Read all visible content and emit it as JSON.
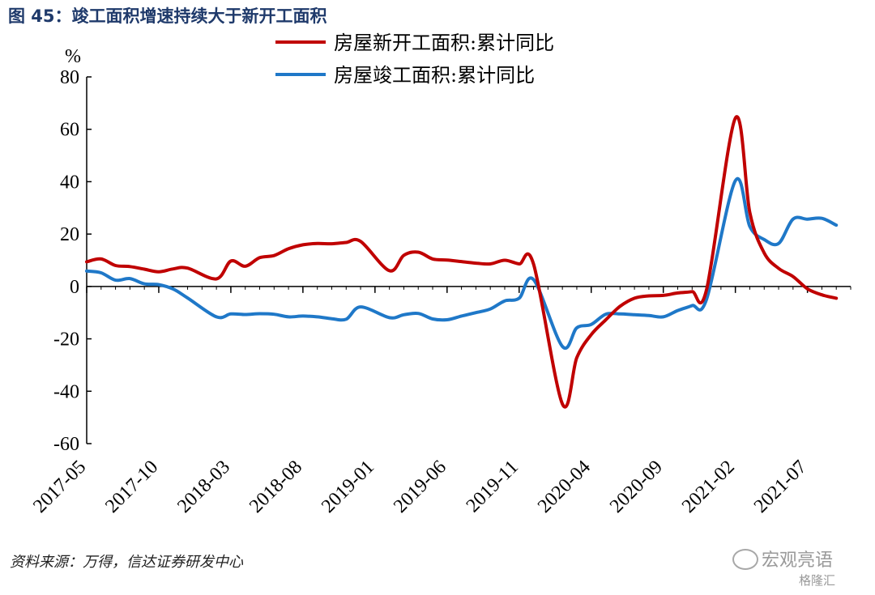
{
  "figure": {
    "title": "图 45：竣工面积增速持续大于新开工面积",
    "source": "资料来源：万得，信达证券研发中心",
    "watermark": "宏观亮语",
    "watermark_sub": "格隆汇"
  },
  "chart_data": {
    "type": "line",
    "yunit": "%",
    "ylim": [
      -60,
      80
    ],
    "yticks": [
      80,
      60,
      40,
      20,
      0,
      -20,
      -40,
      -60
    ],
    "xticks": [
      "2017-05",
      "2017-10",
      "2018-03",
      "2018-08",
      "2019-01",
      "2019-06",
      "2019-11",
      "2020-04",
      "2020-09",
      "2021-02",
      "2021-07"
    ],
    "x_range": [
      "2017-05",
      "2021-10"
    ],
    "legend_position": "top",
    "series": [
      {
        "name": "房屋新开工面积:累计同比",
        "color": "#c00000",
        "points": [
          [
            "2017-05",
            9.4
          ],
          [
            "2017-06",
            10.5
          ],
          [
            "2017-07",
            8.0
          ],
          [
            "2017-08",
            7.6
          ],
          [
            "2017-09",
            6.6
          ],
          [
            "2017-10",
            5.6
          ],
          [
            "2017-11",
            6.7
          ],
          [
            "2017-12",
            7.0
          ],
          [
            "2018-02",
            2.9
          ],
          [
            "2018-03",
            9.7
          ],
          [
            "2018-04",
            7.7
          ],
          [
            "2018-05",
            11.0
          ],
          [
            "2018-06",
            11.8
          ],
          [
            "2018-07",
            14.4
          ],
          [
            "2018-08",
            15.9
          ],
          [
            "2018-09",
            16.4
          ],
          [
            "2018-10",
            16.3
          ],
          [
            "2018-11",
            16.8
          ],
          [
            "2018-12",
            17.2
          ],
          [
            "2019-02",
            6.0
          ],
          [
            "2019-03",
            11.9
          ],
          [
            "2019-04",
            13.1
          ],
          [
            "2019-05",
            10.5
          ],
          [
            "2019-06",
            10.1
          ],
          [
            "2019-07",
            9.5
          ],
          [
            "2019-08",
            8.9
          ],
          [
            "2019-09",
            8.6
          ],
          [
            "2019-10",
            10.0
          ],
          [
            "2019-11",
            8.6
          ],
          [
            "2019-12",
            8.5
          ],
          [
            "2020-02",
            -44.9
          ],
          [
            "2020-03",
            -27.2
          ],
          [
            "2020-04",
            -18.4
          ],
          [
            "2020-05",
            -12.8
          ],
          [
            "2020-06",
            -7.6
          ],
          [
            "2020-07",
            -4.5
          ],
          [
            "2020-08",
            -3.6
          ],
          [
            "2020-09",
            -3.4
          ],
          [
            "2020-10",
            -2.5
          ],
          [
            "2020-11",
            -2.0
          ],
          [
            "2020-12",
            -1.2
          ],
          [
            "2021-02",
            64.3
          ],
          [
            "2021-03",
            28.2
          ],
          [
            "2021-04",
            12.8
          ],
          [
            "2021-05",
            6.9
          ],
          [
            "2021-06",
            3.8
          ],
          [
            "2021-07",
            -0.9
          ],
          [
            "2021-08",
            -3.2
          ],
          [
            "2021-09",
            -4.5
          ]
        ]
      },
      {
        "name": "房屋竣工面积:累计同比",
        "color": "#1f78c8",
        "points": [
          [
            "2017-05",
            5.9
          ],
          [
            "2017-06",
            5.2
          ],
          [
            "2017-07",
            2.4
          ],
          [
            "2017-08",
            3.0
          ],
          [
            "2017-09",
            1.0
          ],
          [
            "2017-10",
            0.7
          ],
          [
            "2017-11",
            -1.0
          ],
          [
            "2017-12",
            -4.4
          ],
          [
            "2018-02",
            -11.6
          ],
          [
            "2018-03",
            -10.5
          ],
          [
            "2018-04",
            -10.7
          ],
          [
            "2018-05",
            -10.4
          ],
          [
            "2018-06",
            -10.6
          ],
          [
            "2018-07",
            -11.6
          ],
          [
            "2018-08",
            -11.3
          ],
          [
            "2018-09",
            -11.6
          ],
          [
            "2018-10",
            -12.3
          ],
          [
            "2018-11",
            -12.5
          ],
          [
            "2018-12",
            -7.8
          ],
          [
            "2019-02",
            -11.9
          ],
          [
            "2019-03",
            -10.8
          ],
          [
            "2019-04",
            -10.3
          ],
          [
            "2019-05",
            -12.4
          ],
          [
            "2019-06",
            -12.7
          ],
          [
            "2019-07",
            -11.3
          ],
          [
            "2019-08",
            -10.0
          ],
          [
            "2019-09",
            -8.6
          ],
          [
            "2019-10",
            -5.5
          ],
          [
            "2019-11",
            -4.5
          ],
          [
            "2019-12",
            2.6
          ],
          [
            "2020-02",
            -22.9
          ],
          [
            "2020-03",
            -15.8
          ],
          [
            "2020-04",
            -14.5
          ],
          [
            "2020-05",
            -10.6
          ],
          [
            "2020-06",
            -10.5
          ],
          [
            "2020-07",
            -10.8
          ],
          [
            "2020-08",
            -11.1
          ],
          [
            "2020-09",
            -11.6
          ],
          [
            "2020-10",
            -9.2
          ],
          [
            "2020-11",
            -7.3
          ],
          [
            "2020-12",
            -4.9
          ],
          [
            "2021-02",
            40.4
          ],
          [
            "2021-03",
            22.9
          ],
          [
            "2021-04",
            17.9
          ],
          [
            "2021-05",
            16.4
          ],
          [
            "2021-06",
            25.7
          ],
          [
            "2021-07",
            25.7
          ],
          [
            "2021-08",
            26.0
          ],
          [
            "2021-09",
            23.4
          ]
        ]
      }
    ]
  }
}
